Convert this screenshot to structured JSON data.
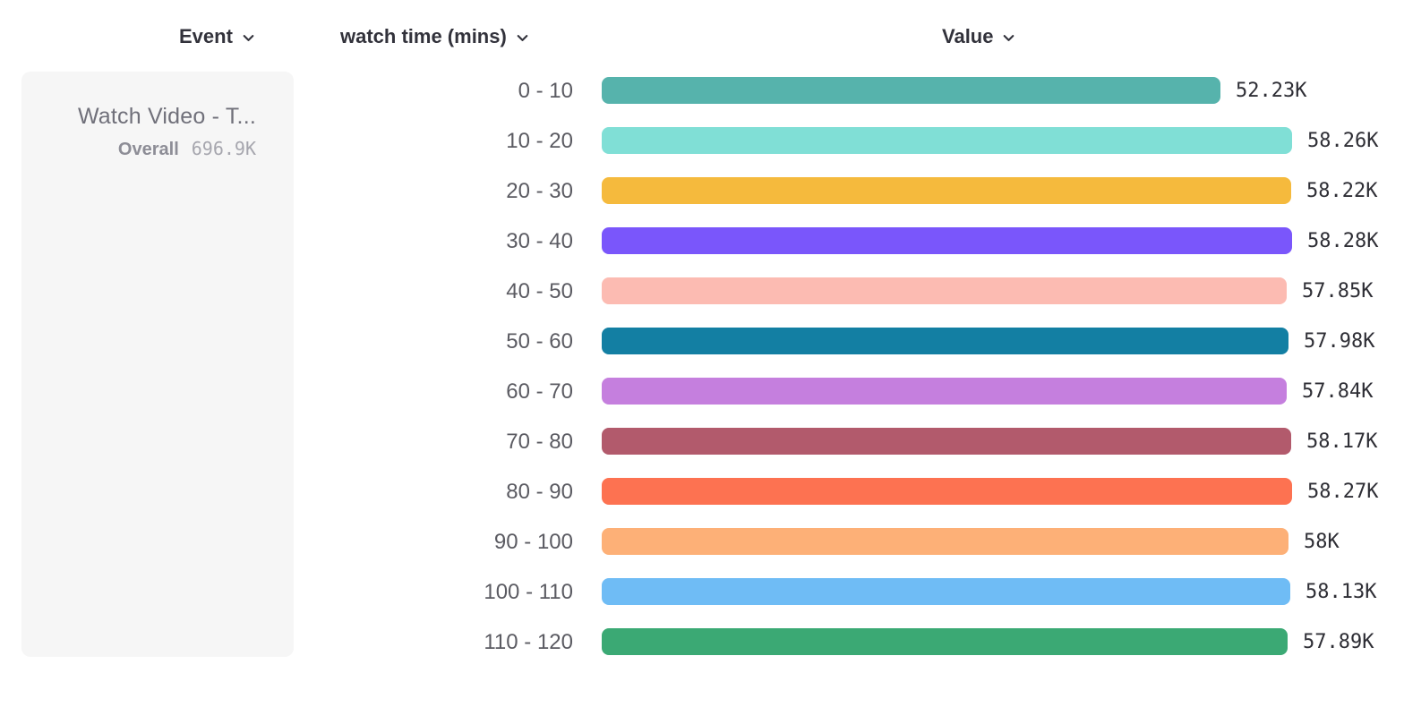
{
  "headers": {
    "event": "Event",
    "breakdown": "watch time (mins)",
    "value": "Value"
  },
  "event_card": {
    "title": "Watch Video - T...",
    "overall_label": "Overall",
    "overall_value": "696.9K"
  },
  "icons": {
    "dropdown": "chevron-down"
  },
  "chart_data": {
    "type": "bar",
    "orientation": "horizontal",
    "title": "",
    "xlabel": "Value",
    "ylabel": "watch time (mins)",
    "categories": [
      "0 - 10",
      "10 - 20",
      "20 - 30",
      "30 - 40",
      "40 - 50",
      "50 - 60",
      "60 - 70",
      "70 - 80",
      "80 - 90",
      "90 - 100",
      "100 - 110",
      "110 - 120"
    ],
    "values": [
      52230,
      58260,
      58220,
      58280,
      57850,
      57980,
      57840,
      58170,
      58270,
      58000,
      58130,
      57890
    ],
    "value_labels": [
      "52.23K",
      "58.26K",
      "58.22K",
      "58.28K",
      "57.85K",
      "57.98K",
      "57.84K",
      "58.17K",
      "58.27K",
      "58K",
      "58.13K",
      "57.89K"
    ],
    "colors": [
      "#56B3AC",
      "#80DFD6",
      "#F5BA3D",
      "#7A56FB",
      "#FCBBB2",
      "#137FA3",
      "#C57FDE",
      "#B25A6C",
      "#FD7251",
      "#FDB077",
      "#6FBCF5",
      "#3BA974"
    ],
    "xlim": [
      0,
      58280
    ],
    "grid": false,
    "legend": "none"
  }
}
